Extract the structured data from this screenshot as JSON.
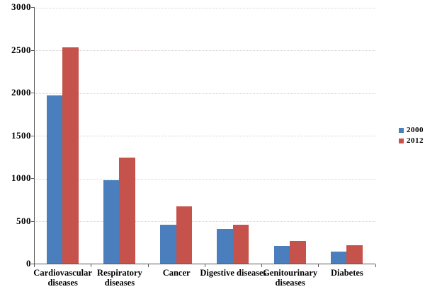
{
  "chart_data": {
    "type": "bar",
    "title": "",
    "xlabel": "",
    "ylabel": "",
    "categories": [
      "Cardiovascular diseases",
      "Respiratory diseases",
      "Cancer",
      "Digestive diseases",
      "Genitourinary diseases",
      "Diabetes"
    ],
    "category_labels": [
      [
        "Cardiovascular",
        "diseases"
      ],
      [
        "Respiratory",
        "diseases"
      ],
      [
        "Cancer"
      ],
      [
        "Digestive diseases"
      ],
      [
        "Genitourinary",
        "diseases"
      ],
      [
        "Diabetes"
      ]
    ],
    "series": [
      {
        "name": "2000",
        "color": "#4A7EBD",
        "values": [
          1970,
          980,
          455,
          405,
          210,
          145
        ]
      },
      {
        "name": "2012",
        "color": "#C5524B",
        "values": [
          2530,
          1240,
          670,
          455,
          270,
          215
        ]
      }
    ],
    "ylim": [
      0,
      3000
    ],
    "ytick_step": 500,
    "yticks": [
      0,
      500,
      1000,
      1500,
      2000,
      2500,
      3000
    ],
    "grid": "horizontal-dotted",
    "legend_position": "right",
    "colors": {
      "axis": "#595959",
      "gridline": "#d9cfd9",
      "text": "#000000",
      "background": "#ffffff"
    }
  }
}
